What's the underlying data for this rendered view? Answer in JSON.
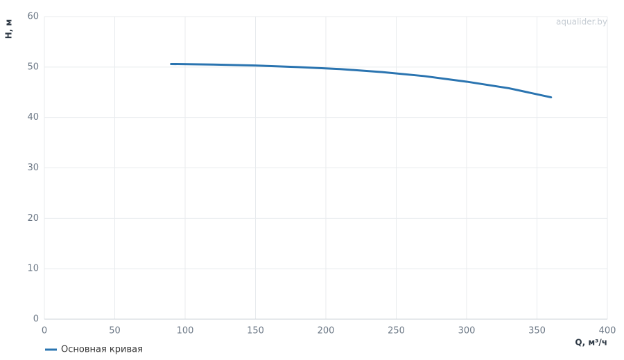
{
  "chart_data": {
    "type": "line",
    "watermark": "aqualider.by",
    "x_label": "Q, м³/ч",
    "y_label": "H, м",
    "x": [
      90,
      120,
      150,
      180,
      210,
      240,
      270,
      300,
      330,
      360
    ],
    "series": [
      {
        "name": "Основная кривая",
        "color": "#2a74b0",
        "values": [
          50.6,
          50.5,
          50.3,
          50.0,
          49.6,
          49.0,
          48.2,
          47.1,
          45.8,
          44.0
        ]
      }
    ],
    "xlim": [
      0,
      400
    ],
    "xticks": [
      0,
      50,
      100,
      150,
      200,
      250,
      300,
      350,
      400
    ],
    "ylim": [
      0,
      60
    ],
    "yticks": [
      0,
      10,
      20,
      30,
      40,
      50,
      60
    ],
    "grid": true,
    "legend": "bottom-left"
  }
}
